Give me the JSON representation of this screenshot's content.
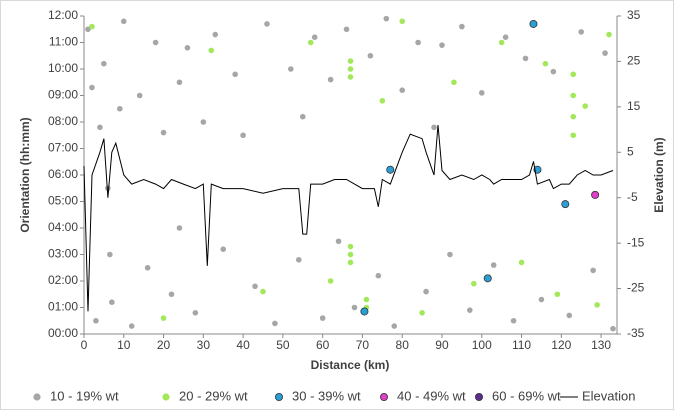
{
  "chart_data": {
    "type": "scatter",
    "xlabel": "Distance (km)",
    "ylabel": "Orientation (hh:mm)",
    "y2label": "Elevation (m)",
    "xlim": [
      0,
      134
    ],
    "xticks": [
      0,
      10,
      20,
      30,
      40,
      50,
      60,
      70,
      80,
      90,
      100,
      110,
      120,
      130
    ],
    "ylim": [
      0,
      12
    ],
    "yticks": [
      {
        "value": 0,
        "label": "00:00"
      },
      {
        "value": 1,
        "label": "01:00"
      },
      {
        "value": 2,
        "label": "02:00"
      },
      {
        "value": 3,
        "label": "03:00"
      },
      {
        "value": 4,
        "label": "04:00"
      },
      {
        "value": 5,
        "label": "05:00"
      },
      {
        "value": 6,
        "label": "06:00"
      },
      {
        "value": 7,
        "label": "07:00"
      },
      {
        "value": 8,
        "label": "08:00"
      },
      {
        "value": 9,
        "label": "09:00"
      },
      {
        "value": 10,
        "label": "10:00"
      },
      {
        "value": 11,
        "label": "11:00"
      },
      {
        "value": 12,
        "label": "12:00"
      }
    ],
    "y2lim": [
      -35,
      35
    ],
    "y2ticks": [
      -35,
      -25,
      -15,
      -5,
      5,
      15,
      25,
      35
    ],
    "legend": "bottom",
    "series": [
      {
        "name": "10 - 19% wt",
        "color": "#a6a6a6",
        "x": [
          1,
          2,
          3,
          4,
          5,
          6,
          6.5,
          7,
          9,
          10,
          12,
          14,
          16,
          18,
          20,
          22,
          24,
          24,
          26,
          28,
          30,
          33,
          35,
          38,
          40,
          43,
          46,
          48,
          52,
          54,
          55,
          58,
          60,
          62,
          64,
          66,
          68,
          72,
          74,
          76,
          78,
          80,
          84,
          86,
          88,
          90,
          92,
          95,
          97,
          100,
          103,
          106,
          108,
          111,
          115,
          118,
          122,
          125,
          128,
          131,
          133
        ],
        "values": [
          11.5,
          9.3,
          0.5,
          7.8,
          10.2,
          5.5,
          3,
          1.2,
          8.5,
          11.8,
          0.3,
          9,
          2.5,
          11,
          7.6,
          1.5,
          9.5,
          4,
          10.8,
          0.8,
          8,
          11.3,
          3.2,
          9.8,
          7.5,
          1.8,
          11.7,
          0.4,
          10,
          2.8,
          8.2,
          11.2,
          0.6,
          9.6,
          3.5,
          11.5,
          1,
          10.5,
          2.2,
          11.9,
          0.3,
          9.2,
          11,
          1.6,
          7.8,
          10.9,
          3,
          11.6,
          0.9,
          9.1,
          2.6,
          11.2,
          0.5,
          10.4,
          1.3,
          9.9,
          0.7,
          11.4,
          2.4,
          10.6,
          0.2
        ]
      },
      {
        "name": "20 - 29% wt",
        "color": "#a3e85a",
        "x": [
          67,
          67,
          67,
          67,
          67,
          67,
          71,
          71,
          123,
          123,
          123,
          123,
          2,
          20,
          32,
          45,
          57,
          62,
          75,
          80,
          85,
          93,
          98,
          105,
          110,
          116,
          119,
          126,
          129,
          132
        ],
        "values": [
          10.3,
          10,
          9.7,
          3.3,
          3,
          2.7,
          1.3,
          1,
          9.8,
          9,
          8.2,
          7.5,
          11.6,
          0.6,
          10.7,
          1.6,
          11,
          2,
          8.8,
          11.8,
          0.8,
          9.5,
          1.9,
          11,
          2.7,
          10.2,
          1.5,
          8.6,
          1.1,
          11.3
        ]
      },
      {
        "name": "30 - 39% wt",
        "color": "#2a9fd6",
        "x": [
          113,
          77,
          114,
          121,
          70.5,
          101.5
        ],
        "values": [
          11.7,
          6.2,
          6.2,
          4.9,
          0.85,
          2.1
        ]
      },
      {
        "name": "40 - 49% wt",
        "color": "#e040c8",
        "x": [
          128.5
        ],
        "values": [
          5.25
        ]
      },
      {
        "name": "60 - 69% wt",
        "color": "#5b2d8c",
        "x": [],
        "values": []
      },
      {
        "name": "Elevation",
        "type": "line",
        "axis": "y2",
        "color": "#000000",
        "x": [
          0,
          1,
          2,
          4,
          5,
          6,
          7,
          8,
          10,
          12,
          15,
          18,
          20,
          22,
          25,
          28,
          30,
          31,
          32,
          35,
          40,
          45,
          50,
          54,
          55,
          56,
          57,
          60,
          63,
          66,
          70,
          73,
          74,
          75,
          77,
          80,
          82,
          85,
          86,
          88,
          89,
          90,
          92,
          95,
          98,
          100,
          102,
          103,
          105,
          108,
          110,
          112,
          113,
          114,
          117,
          118,
          120,
          122,
          124,
          126,
          128,
          130,
          133
        ],
        "values": [
          2,
          -30,
          0,
          5,
          8,
          -5,
          5,
          7,
          0,
          -2,
          -1,
          -2,
          -3,
          -1,
          -2,
          -3,
          -2,
          -20,
          -2,
          -3,
          -3,
          -4,
          -3,
          -3,
          -13,
          -13,
          -2,
          -2,
          -1,
          -1,
          -3,
          -3,
          -7,
          -1,
          -2,
          5,
          9,
          8,
          5,
          0,
          11,
          1,
          -1,
          0,
          -1,
          0,
          -1,
          -2,
          -1,
          -1,
          -1,
          0,
          3,
          -2,
          -1,
          -3,
          -2,
          -2,
          0,
          1,
          0,
          0,
          1
        ]
      }
    ]
  }
}
